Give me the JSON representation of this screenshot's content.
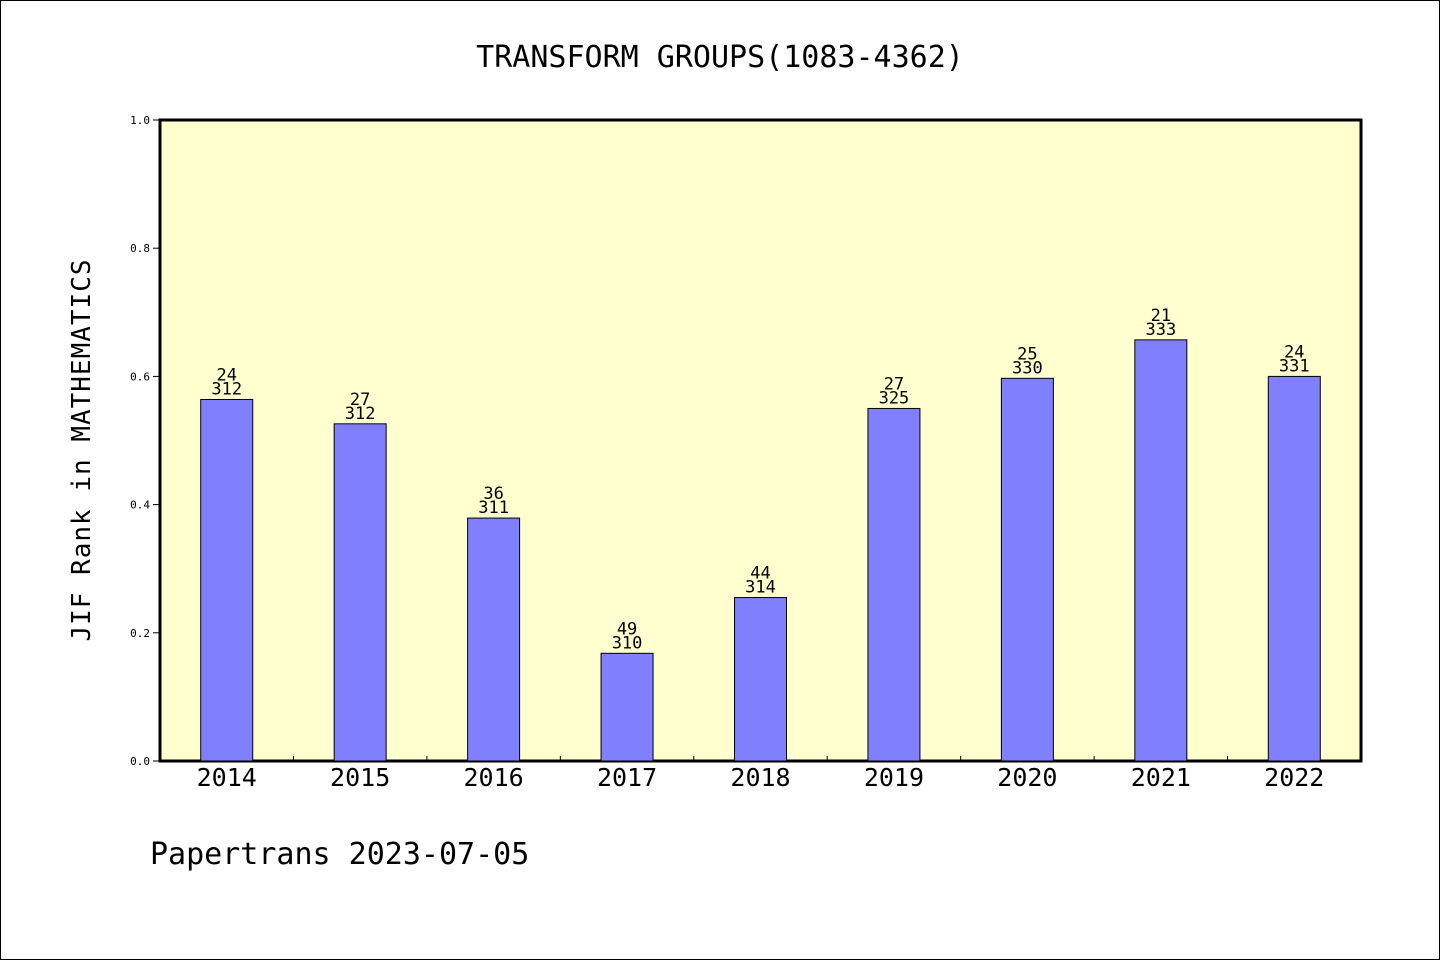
{
  "chart_data": {
    "type": "bar",
    "title": "TRANSFORM GROUPS(1083-4362)",
    "xlabel": "",
    "ylabel": "JIF Rank in MATHEMATICS",
    "ylim": [
      0,
      1.0
    ],
    "yticks": [
      "0.0",
      "0.2",
      "0.4",
      "0.6",
      "0.8",
      "1.0"
    ],
    "grid": false,
    "categories": [
      "2014",
      "2015",
      "2016",
      "2017",
      "2018",
      "2019",
      "2020",
      "2021",
      "2022"
    ],
    "values": [
      0.564,
      0.526,
      0.379,
      0.168,
      0.255,
      0.55,
      0.597,
      0.657,
      0.6
    ],
    "rank": [
      "24",
      "27",
      "36",
      "49",
      "44",
      "27",
      "25",
      "21",
      "24"
    ],
    "total": [
      "312",
      "312",
      "311",
      "310",
      "314",
      "325",
      "330",
      "333",
      "331"
    ],
    "colors": {
      "plot_background": "#ffffd0",
      "bar_fill": "#8080ff",
      "bar_stroke": "#000000"
    }
  },
  "footer": "Papertrans 2023-07-05"
}
